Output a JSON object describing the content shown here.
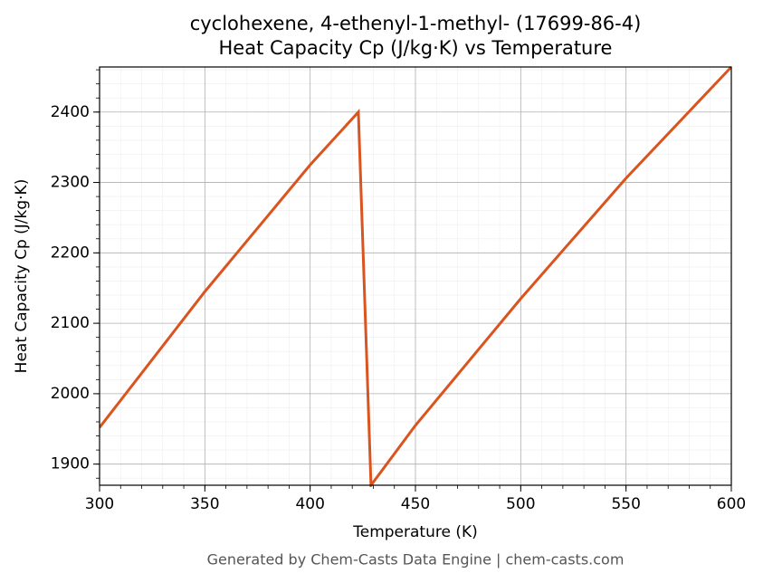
{
  "chart_data": {
    "type": "line",
    "title": "cyclohexene, 4-ethenyl-1-methyl- (17699-86-4)",
    "subtitle": "Heat Capacity Cp (J/kg·K) vs Temperature",
    "x_label": "Temperature (K)",
    "y_label": "Heat Capacity Cp (J/kg·K)",
    "footer": "Generated by Chem-Casts Data Engine | chem-casts.com",
    "x": [
      300,
      350,
      400,
      422.9,
      428.9,
      450,
      500,
      550,
      600
    ],
    "series": [
      {
        "name": "Cp",
        "color": "#d9541e",
        "values": [
          1952,
          2145,
          2325,
          2400,
          1870,
          1955,
          2135,
          2306,
          2464
        ]
      }
    ],
    "xlim": [
      300,
      600
    ],
    "xticks": [
      300,
      350,
      400,
      450,
      500,
      550,
      600
    ],
    "ylim": [
      1870,
      2464
    ],
    "yticks": [
      1900,
      2000,
      2100,
      2200,
      2300,
      2400
    ],
    "grid": true
  }
}
